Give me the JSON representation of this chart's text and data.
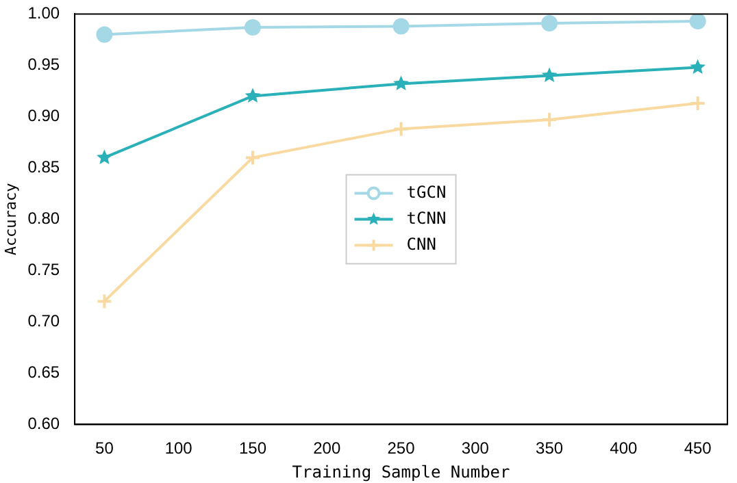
{
  "chart_data": {
    "type": "line",
    "xlabel": "Training Sample Number",
    "ylabel": "Accuracy",
    "x": [
      50,
      150,
      250,
      350,
      450
    ],
    "series": [
      {
        "name": "tGCN",
        "color": "#a5d8e6",
        "marker": "circle",
        "values": [
          0.98,
          0.987,
          0.988,
          0.991,
          0.993
        ]
      },
      {
        "name": "tCNN",
        "color": "#2ab0b8",
        "marker": "star",
        "values": [
          0.86,
          0.92,
          0.932,
          0.94,
          0.948
        ]
      },
      {
        "name": "CNN",
        "color": "#f8d9a0",
        "marker": "cross",
        "values": [
          0.72,
          0.86,
          0.888,
          0.897,
          0.913
        ]
      }
    ],
    "xlim": [
      30,
      470
    ],
    "xticks": [
      50,
      100,
      150,
      200,
      250,
      300,
      350,
      400,
      450
    ],
    "ylim": [
      0.6,
      1.0
    ],
    "yticks": [
      {
        "value": 0.6,
        "label": "0.60"
      },
      {
        "value": 0.65,
        "label": "0.65"
      },
      {
        "value": 0.7,
        "label": "0.70"
      },
      {
        "value": 0.75,
        "label": "0.75"
      },
      {
        "value": 0.8,
        "label": "0.80"
      },
      {
        "value": 0.85,
        "label": "0.85"
      },
      {
        "value": 0.9,
        "label": "0.90"
      },
      {
        "value": 0.95,
        "label": "0.95"
      },
      {
        "value": 1.0,
        "label": "1.00"
      }
    ],
    "grid": false,
    "legend": "center"
  }
}
